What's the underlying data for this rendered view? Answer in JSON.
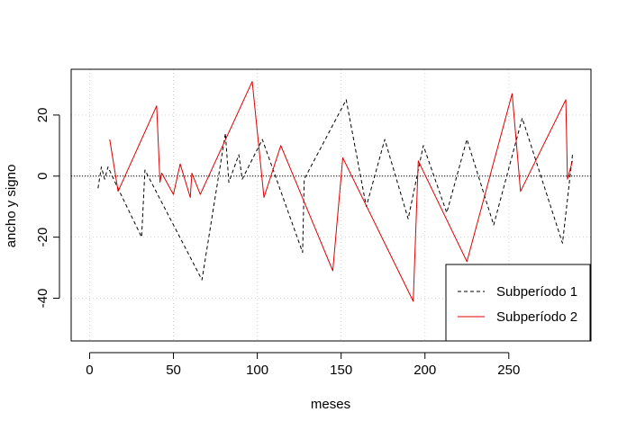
{
  "chart_data": {
    "type": "line",
    "title": "",
    "xlabel": "meses",
    "ylabel": "ancho y signo",
    "xlim": [
      -11,
      299
    ],
    "ylim": [
      -54,
      35
    ],
    "x_ticks": [
      0,
      50,
      100,
      150,
      200,
      250
    ],
    "y_ticks": [
      -40,
      -20,
      0,
      20
    ],
    "grid": true,
    "reference_line_y": 0,
    "legend_position": "bottom-right",
    "series": [
      {
        "name": "Subperíodo 1",
        "color": "#000000",
        "line_style": "dashed",
        "points": [
          [
            5,
            -4
          ],
          [
            7,
            3
          ],
          [
            9,
            -1
          ],
          [
            11,
            3
          ],
          [
            16,
            -3
          ],
          [
            31,
            -20
          ],
          [
            33,
            2
          ],
          [
            67,
            -34
          ],
          [
            81,
            14
          ],
          [
            83,
            -2
          ],
          [
            89,
            7
          ],
          [
            91,
            -1
          ],
          [
            103,
            12
          ],
          [
            127,
            -25
          ],
          [
            128,
            -1
          ],
          [
            153,
            25
          ],
          [
            165,
            -10
          ],
          [
            176,
            12
          ],
          [
            190,
            -14
          ],
          [
            199,
            10
          ],
          [
            213,
            -12
          ],
          [
            225,
            12
          ],
          [
            241,
            -16
          ],
          [
            258,
            19
          ],
          [
            282,
            -22
          ],
          [
            288,
            7
          ]
        ]
      },
      {
        "name": "Subperíodo 2",
        "color": "#e00000",
        "line_style": "solid",
        "points": [
          [
            12,
            12
          ],
          [
            17,
            -5
          ],
          [
            40,
            23
          ],
          [
            42,
            -2
          ],
          [
            43,
            1
          ],
          [
            50,
            -6
          ],
          [
            54,
            4
          ],
          [
            60,
            -7
          ],
          [
            61,
            1
          ],
          [
            66,
            -6
          ],
          [
            97,
            31
          ],
          [
            104,
            -7
          ],
          [
            114,
            10
          ],
          [
            145,
            -31
          ],
          [
            151,
            6
          ],
          [
            193,
            -41
          ],
          [
            196,
            5
          ],
          [
            225,
            -28
          ],
          [
            252,
            27
          ],
          [
            257,
            -5
          ],
          [
            284,
            25
          ],
          [
            285,
            -1
          ],
          [
            288,
            5
          ]
        ]
      }
    ]
  }
}
